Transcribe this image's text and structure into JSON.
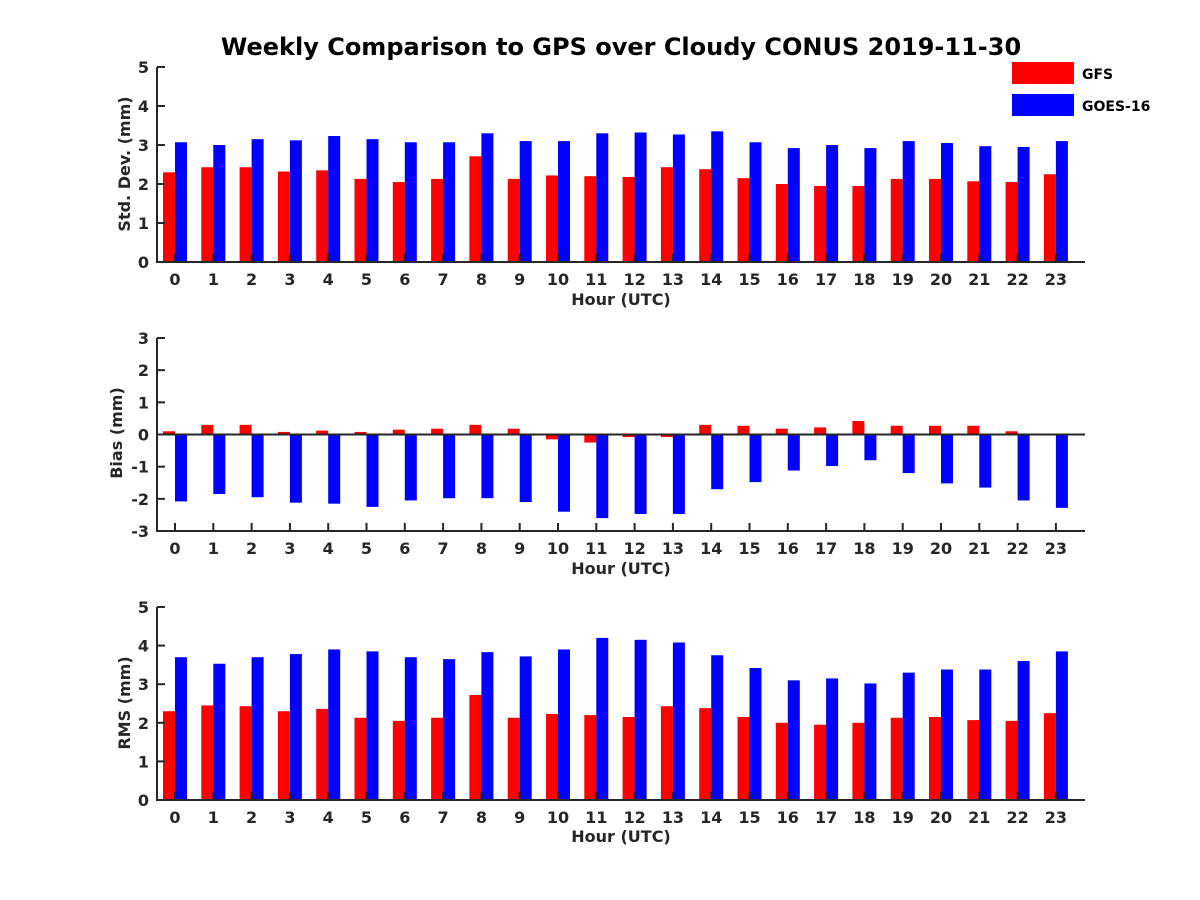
{
  "figure": {
    "title": "Weekly Comparison to GPS over Cloudy CONUS 2019-11-30"
  },
  "legend": {
    "placement": "top-right",
    "entries": [
      {
        "label": "GFS",
        "color": "#ff0000"
      },
      {
        "label": "GOES-16",
        "color": "#0000ff"
      }
    ]
  },
  "chart_data": [
    {
      "type": "bar",
      "xlabel": "Hour (UTC)",
      "ylabel": "Std. Dev. (mm)",
      "ylim": [
        0,
        5
      ],
      "yticks": [
        0,
        1,
        2,
        3,
        4,
        5
      ],
      "grid": false,
      "categories": [
        "0",
        "1",
        "2",
        "3",
        "4",
        "5",
        "6",
        "7",
        "8",
        "9",
        "10",
        "11",
        "12",
        "13",
        "14",
        "15",
        "16",
        "17",
        "18",
        "19",
        "20",
        "21",
        "22",
        "23"
      ],
      "series": [
        {
          "name": "GFS",
          "color": "#ff0000",
          "values": [
            2.3,
            2.43,
            2.43,
            2.32,
            2.35,
            2.13,
            2.05,
            2.13,
            2.71,
            2.13,
            2.22,
            2.2,
            2.18,
            2.43,
            2.38,
            2.15,
            2.0,
            1.95,
            1.95,
            2.13,
            2.13,
            2.07,
            2.05,
            2.25
          ]
        },
        {
          "name": "GOES-16",
          "color": "#0000ff",
          "values": [
            3.07,
            3.0,
            3.15,
            3.12,
            3.23,
            3.15,
            3.07,
            3.07,
            3.3,
            3.1,
            3.1,
            3.3,
            3.32,
            3.27,
            3.35,
            3.07,
            2.92,
            3.0,
            2.92,
            3.1,
            3.05,
            2.97,
            2.95,
            3.1
          ]
        }
      ]
    },
    {
      "type": "bar",
      "xlabel": "Hour (UTC)",
      "ylabel": "Bias (mm)",
      "ylim": [
        -3,
        3
      ],
      "yticks": [
        -3,
        -2,
        -1,
        0,
        1,
        2,
        3
      ],
      "grid": false,
      "zero_line": true,
      "categories": [
        "0",
        "1",
        "2",
        "3",
        "4",
        "5",
        "6",
        "7",
        "8",
        "9",
        "10",
        "11",
        "12",
        "13",
        "14",
        "15",
        "16",
        "17",
        "18",
        "19",
        "20",
        "21",
        "22",
        "23"
      ],
      "series": [
        {
          "name": "GFS",
          "color": "#ff0000",
          "values": [
            0.1,
            0.3,
            0.3,
            0.08,
            0.12,
            0.08,
            0.15,
            0.18,
            0.3,
            0.18,
            -0.15,
            -0.25,
            -0.08,
            -0.08,
            0.3,
            0.27,
            0.18,
            0.22,
            0.42,
            0.27,
            0.27,
            0.27,
            0.1,
            0.0
          ]
        },
        {
          "name": "GOES-16",
          "color": "#0000ff",
          "values": [
            -2.08,
            -1.85,
            -1.95,
            -2.12,
            -2.15,
            -2.25,
            -2.05,
            -1.98,
            -1.98,
            -2.1,
            -2.4,
            -2.6,
            -2.47,
            -2.47,
            -1.7,
            -1.48,
            -1.12,
            -0.98,
            -0.8,
            -1.2,
            -1.52,
            -1.65,
            -2.05,
            -2.28
          ]
        }
      ]
    },
    {
      "type": "bar",
      "xlabel": "Hour (UTC)",
      "ylabel": "RMS (mm)",
      "ylim": [
        0,
        5
      ],
      "yticks": [
        0,
        1,
        2,
        3,
        4,
        5
      ],
      "grid": false,
      "categories": [
        "0",
        "1",
        "2",
        "3",
        "4",
        "5",
        "6",
        "7",
        "8",
        "9",
        "10",
        "11",
        "12",
        "13",
        "14",
        "15",
        "16",
        "17",
        "18",
        "19",
        "20",
        "21",
        "22",
        "23"
      ],
      "series": [
        {
          "name": "GFS",
          "color": "#ff0000",
          "values": [
            2.3,
            2.45,
            2.43,
            2.3,
            2.36,
            2.13,
            2.05,
            2.13,
            2.72,
            2.13,
            2.23,
            2.2,
            2.15,
            2.43,
            2.38,
            2.15,
            2.0,
            1.95,
            2.0,
            2.13,
            2.15,
            2.07,
            2.05,
            2.25
          ]
        },
        {
          "name": "GOES-16",
          "color": "#0000ff",
          "values": [
            3.7,
            3.53,
            3.7,
            3.78,
            3.9,
            3.85,
            3.7,
            3.65,
            3.83,
            3.72,
            3.9,
            4.2,
            4.15,
            4.08,
            3.75,
            3.42,
            3.1,
            3.15,
            3.02,
            3.3,
            3.38,
            3.38,
            3.6,
            3.85
          ]
        }
      ]
    }
  ]
}
